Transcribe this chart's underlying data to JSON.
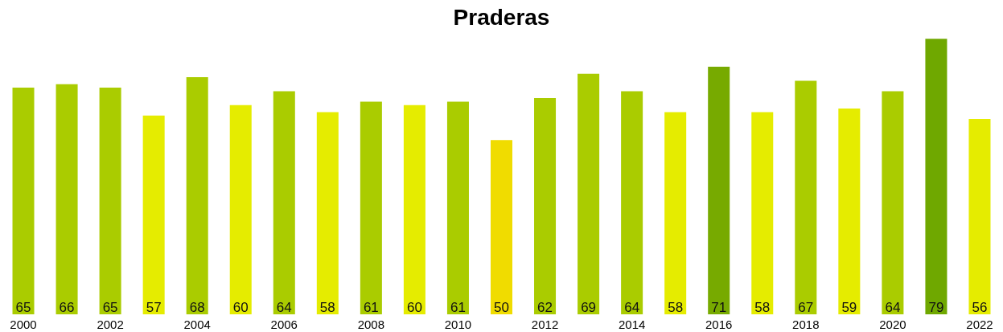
{
  "chart_data": {
    "type": "bar",
    "title": "Praderas",
    "categories": [
      "2000",
      null,
      "2002",
      null,
      "2004",
      null,
      "2006",
      null,
      "2008",
      null,
      "2010",
      null,
      "2012",
      null,
      "2014",
      null,
      "2016",
      null,
      "2018",
      null,
      "2020",
      null,
      "2022"
    ],
    "values": [
      65,
      66,
      65,
      57,
      68,
      60,
      64,
      58,
      61,
      60,
      61,
      50,
      62,
      69,
      64,
      58,
      71,
      58,
      67,
      59,
      64,
      79,
      56
    ],
    "colors": [
      "#aacc00",
      "#aacc00",
      "#aacc00",
      "#e5ec00",
      "#aacc00",
      "#e5ec00",
      "#aacc00",
      "#e5ec00",
      "#aacc00",
      "#e5ec00",
      "#aacc00",
      "#f0dc00",
      "#aacc00",
      "#aacc00",
      "#aacc00",
      "#e5ec00",
      "#77aa00",
      "#e5ec00",
      "#aacc00",
      "#e5ec00",
      "#aacc00",
      "#6fa800",
      "#e5ec00"
    ],
    "data_labels": true
  }
}
